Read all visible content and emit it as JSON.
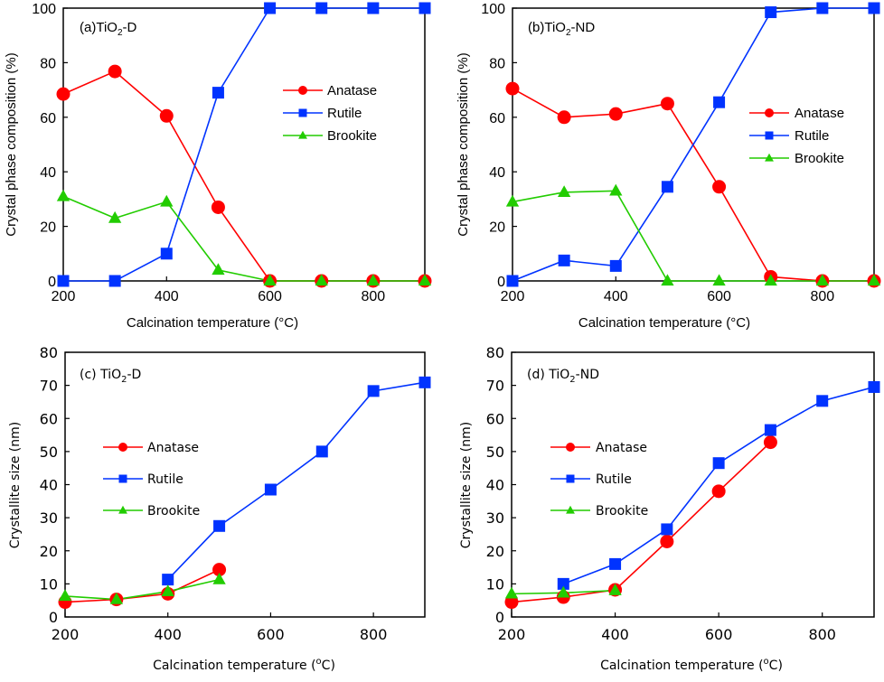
{
  "chart_data": [
    {
      "id": "a",
      "type": "line",
      "panel_label": "(a)TiO",
      "panel_sub": "2",
      "panel_suffix": "-D",
      "xlabel": "Calcination temperature (°C)",
      "ylabel": "Crystal phase composition (%)",
      "xlim": [
        200,
        900
      ],
      "ylim": [
        0,
        100
      ],
      "xticks": [
        200,
        400,
        600,
        800
      ],
      "yticks": [
        0,
        20,
        40,
        60,
        80,
        100
      ],
      "grid": false,
      "legend": "center-right",
      "series": [
        {
          "name": "Anatase",
          "color": "#ff0000",
          "marker": "circle",
          "x": [
            200,
            300,
            400,
            500,
            600,
            700,
            800,
            900
          ],
          "y": [
            68.5,
            76.8,
            60.5,
            27,
            0,
            0,
            0,
            0
          ]
        },
        {
          "name": "Rutile",
          "color": "#0033ff",
          "marker": "square",
          "x": [
            200,
            300,
            400,
            500,
            600,
            700,
            800,
            900
          ],
          "y": [
            0,
            0,
            10,
            69,
            100,
            100,
            100,
            100
          ]
        },
        {
          "name": "Brookite",
          "color": "#22cc00",
          "marker": "triangle",
          "x": [
            200,
            300,
            400,
            500,
            600,
            700,
            800,
            900
          ],
          "y": [
            31,
            23,
            29,
            4,
            0,
            0,
            0,
            0
          ]
        }
      ]
    },
    {
      "id": "b",
      "type": "line",
      "panel_label": "(b)TiO",
      "panel_sub": "2",
      "panel_suffix": "-ND",
      "xlabel": "Calcination temperature (°C)",
      "ylabel": "Crystal phase composition (%)",
      "xlim": [
        200,
        900
      ],
      "ylim": [
        0,
        100
      ],
      "xticks": [
        200,
        400,
        600,
        800
      ],
      "yticks": [
        0,
        20,
        40,
        60,
        80,
        100
      ],
      "grid": false,
      "legend": "center-right",
      "series": [
        {
          "name": "Anatase",
          "color": "#ff0000",
          "marker": "circle",
          "x": [
            200,
            300,
            400,
            500,
            600,
            700,
            800,
            900
          ],
          "y": [
            70.5,
            60,
            61.2,
            65,
            34.5,
            1.5,
            0,
            0
          ]
        },
        {
          "name": "Rutile",
          "color": "#0033ff",
          "marker": "square",
          "x": [
            200,
            300,
            400,
            500,
            600,
            700,
            800,
            900
          ],
          "y": [
            0,
            7.5,
            5.5,
            34.5,
            65.5,
            98.5,
            100,
            100
          ]
        },
        {
          "name": "Brookite",
          "color": "#22cc00",
          "marker": "triangle",
          "x": [
            200,
            300,
            400,
            500,
            600,
            700,
            800,
            900
          ],
          "y": [
            29,
            32.5,
            33,
            0,
            0,
            0,
            0,
            0
          ]
        }
      ]
    },
    {
      "id": "c",
      "type": "line",
      "panel_label": "(c) TiO",
      "panel_sub": "2",
      "panel_suffix": "-D",
      "xlabel": "Calcination temperature (",
      "xlabel_sup": "o",
      "xlabel_suffix": "C)",
      "ylabel": "Crystallite size (nm)",
      "xlim": [
        200,
        900
      ],
      "ylim": [
        0,
        80
      ],
      "xticks": [
        200,
        400,
        600,
        800
      ],
      "yticks": [
        0,
        10,
        20,
        30,
        40,
        50,
        60,
        70,
        80
      ],
      "grid": false,
      "legend": "center-left",
      "series": [
        {
          "name": "Anatase",
          "color": "#ff0000",
          "marker": "circle",
          "x": [
            200,
            300,
            400,
            500
          ],
          "y": [
            4.5,
            5.3,
            7,
            14.3
          ]
        },
        {
          "name": "Rutile",
          "color": "#0033ff",
          "marker": "square",
          "x": [
            400,
            500,
            600,
            700,
            800,
            900
          ],
          "y": [
            11.3,
            27.5,
            38.5,
            50,
            68.3,
            70.9
          ]
        },
        {
          "name": "Brookite",
          "color": "#22cc00",
          "marker": "triangle",
          "x": [
            200,
            300,
            400,
            500
          ],
          "y": [
            6.3,
            5.3,
            7.7,
            11.3
          ]
        }
      ]
    },
    {
      "id": "d",
      "type": "line",
      "panel_label": "(d) TiO",
      "panel_sub": "2",
      "panel_suffix": "-ND",
      "xlabel": "Calcination temperature (",
      "xlabel_sup": "o",
      "xlabel_suffix": "C)",
      "ylabel": "Crystallite size (nm)",
      "xlim": [
        200,
        900
      ],
      "ylim": [
        0,
        80
      ],
      "xticks": [
        200,
        400,
        600,
        800
      ],
      "yticks": [
        0,
        10,
        20,
        30,
        40,
        50,
        60,
        70,
        80
      ],
      "grid": false,
      "legend": "center-left",
      "series": [
        {
          "name": "Anatase",
          "color": "#ff0000",
          "marker": "circle",
          "x": [
            200,
            300,
            400,
            500,
            600,
            700
          ],
          "y": [
            4.5,
            6,
            8.2,
            22.8,
            38,
            52.8
          ]
        },
        {
          "name": "Rutile",
          "color": "#0033ff",
          "marker": "square",
          "x": [
            300,
            400,
            500,
            600,
            700,
            800,
            900
          ],
          "y": [
            10,
            16,
            26.5,
            46.5,
            56.5,
            65.3,
            69.5
          ]
        },
        {
          "name": "Brookite",
          "color": "#22cc00",
          "marker": "triangle",
          "x": [
            200,
            300,
            400
          ],
          "y": [
            7,
            7.3,
            8
          ]
        }
      ]
    }
  ]
}
